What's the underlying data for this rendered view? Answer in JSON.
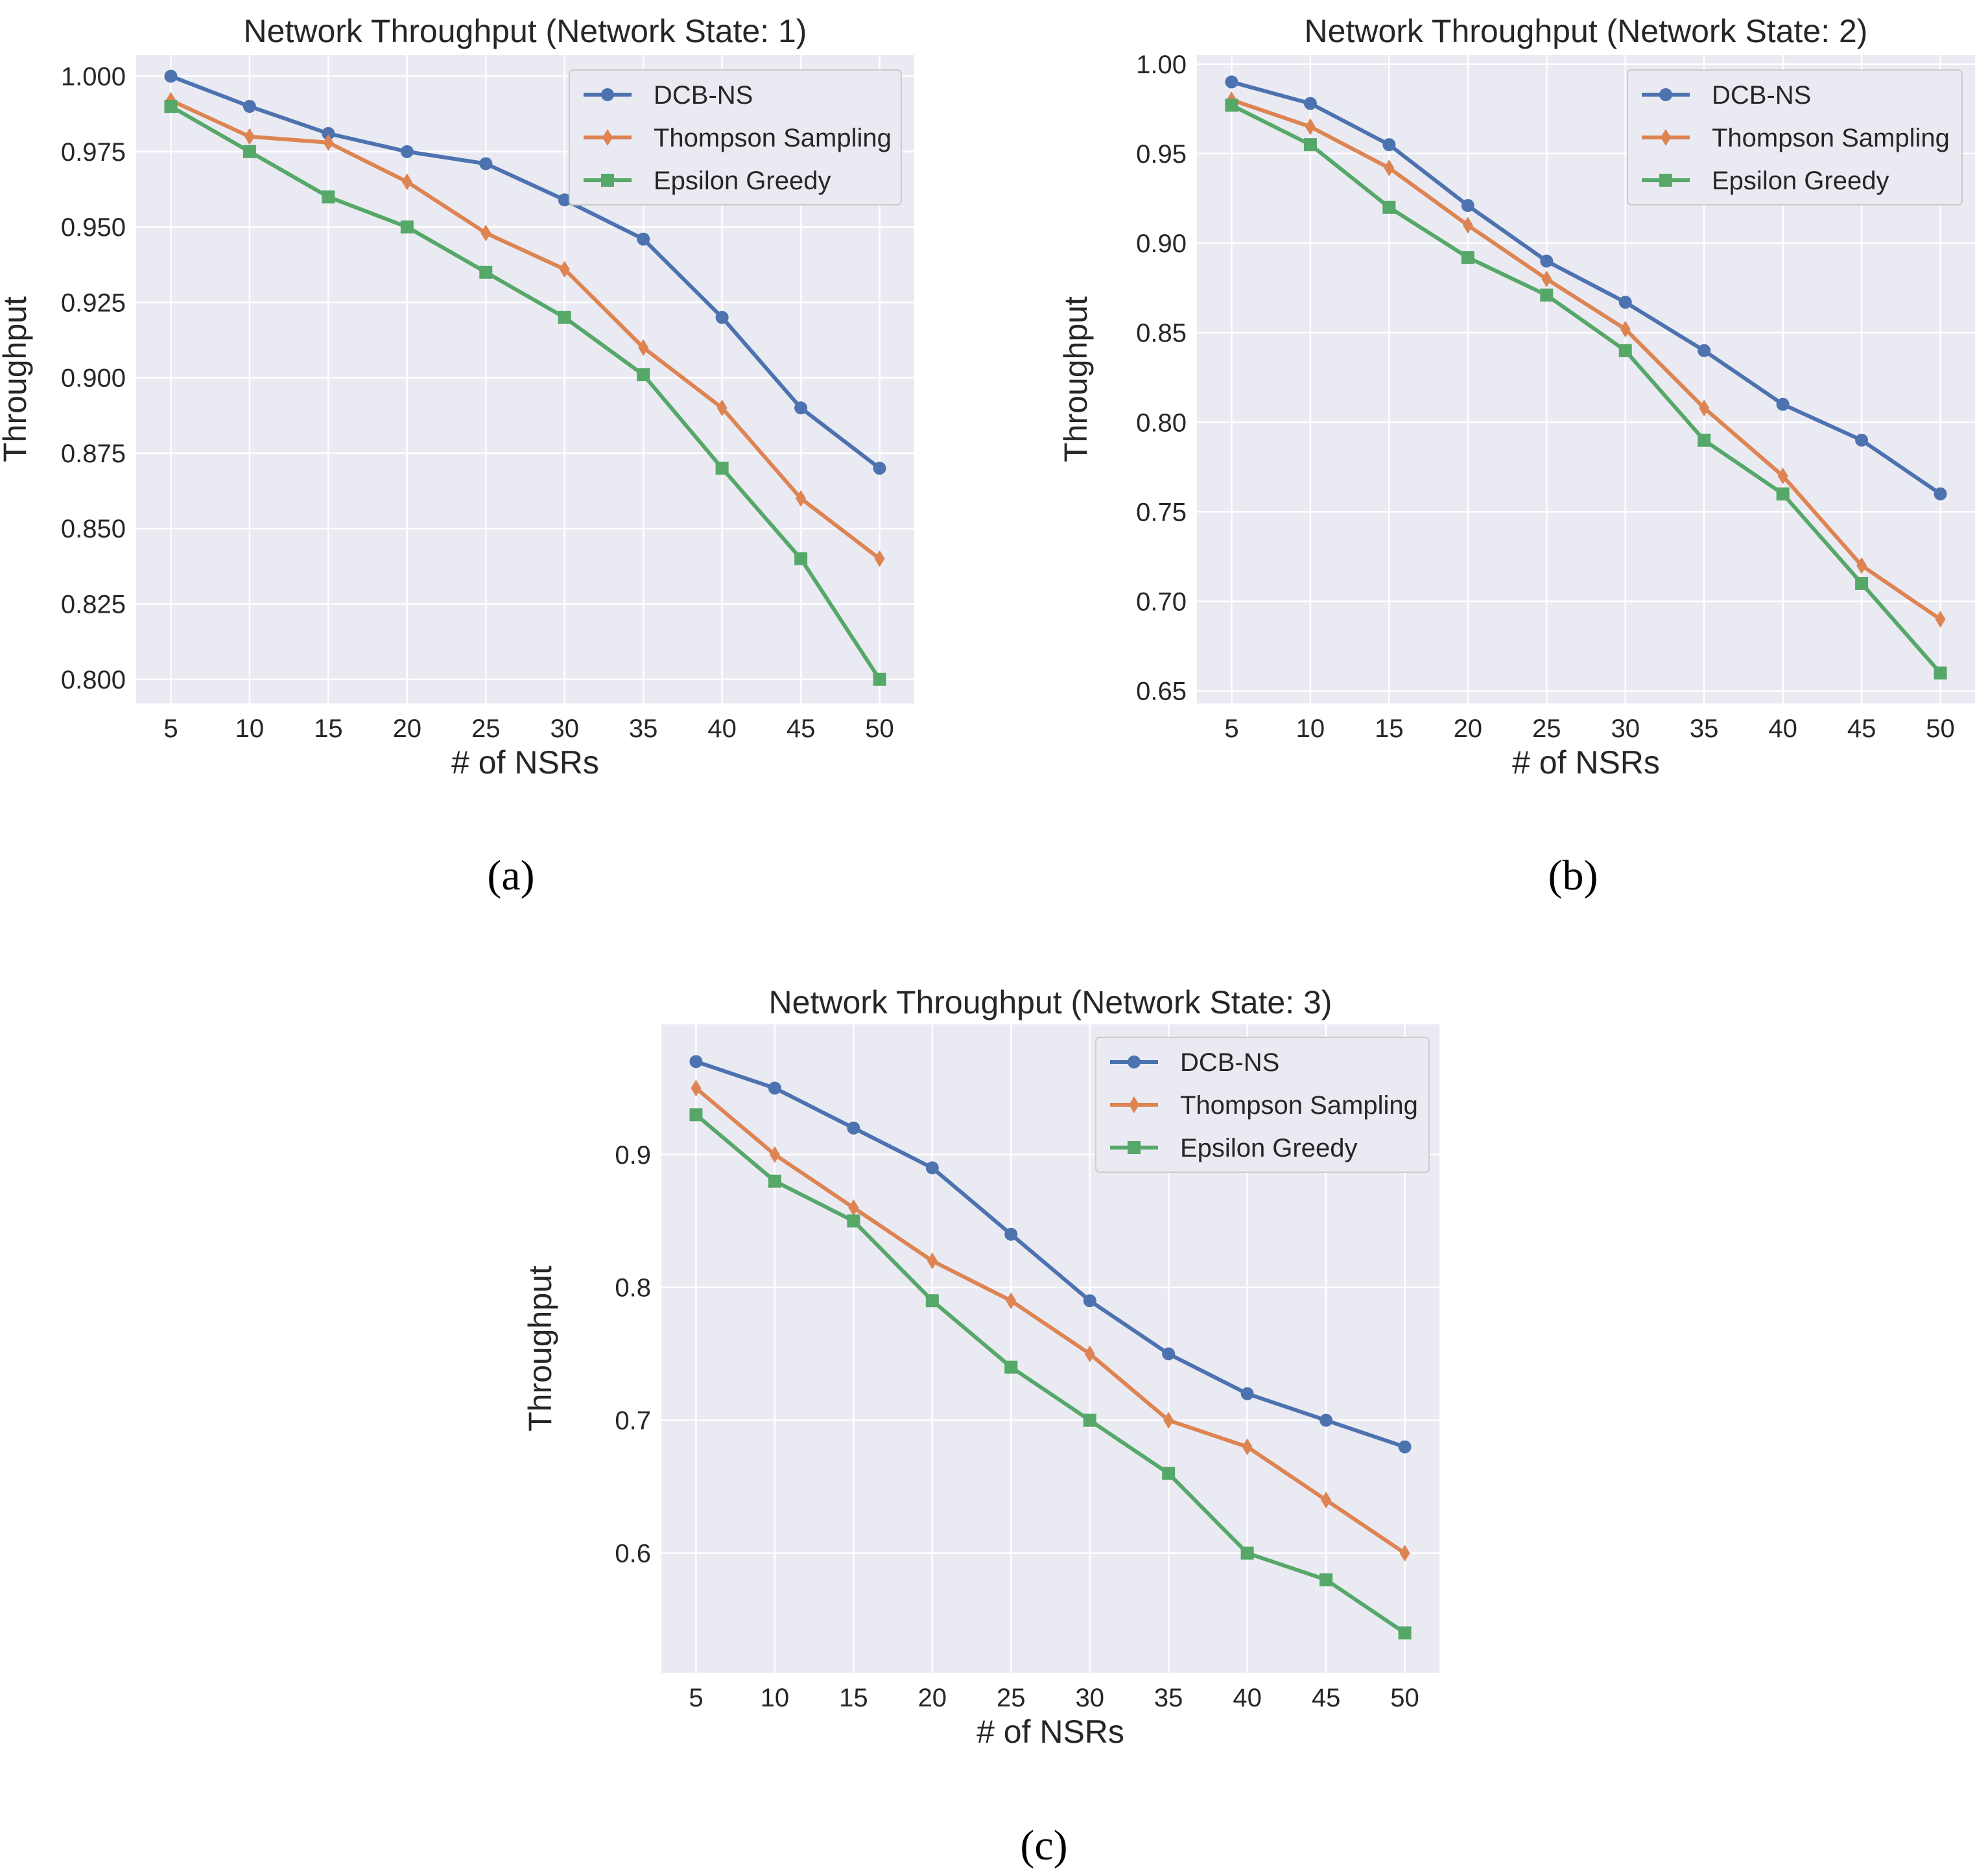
{
  "figure": {
    "captions": [
      "(a)",
      "(b)",
      "(c)"
    ]
  },
  "colors": {
    "plot_background": "#EAEAF2",
    "grid": "#FFFFFF",
    "series": [
      "#4C72B0",
      "#DD8452",
      "#55A868"
    ]
  },
  "chart_data": [
    {
      "type": "line",
      "title": "Network Throughput (Network State: 1)",
      "xlabel": "# of NSRs",
      "ylabel": "Throughput",
      "x": [
        5,
        10,
        15,
        20,
        25,
        30,
        35,
        40,
        45,
        50
      ],
      "xlim": [
        2.8,
        52.2
      ],
      "ylim": [
        0.792,
        1.007
      ],
      "yticks": [
        0.8,
        0.825,
        0.85,
        0.875,
        0.9,
        0.925,
        0.95,
        0.975,
        1.0
      ],
      "ytick_labels": [
        "0.800",
        "0.825",
        "0.850",
        "0.875",
        "0.900",
        "0.925",
        "0.950",
        "0.975",
        "1.000"
      ],
      "legend_position": "top-right",
      "grid": true,
      "series": [
        {
          "name": "DCB-NS",
          "marker": "circle",
          "values": [
            1.0,
            0.99,
            0.981,
            0.975,
            0.971,
            0.959,
            0.946,
            0.92,
            0.89,
            0.87
          ]
        },
        {
          "name": "Thompson Sampling",
          "marker": "diamond",
          "values": [
            0.992,
            0.98,
            0.978,
            0.965,
            0.948,
            0.936,
            0.91,
            0.89,
            0.86,
            0.84
          ]
        },
        {
          "name": "Epsilon Greedy",
          "marker": "square",
          "values": [
            0.99,
            0.975,
            0.96,
            0.95,
            0.935,
            0.92,
            0.901,
            0.87,
            0.84,
            0.8
          ]
        }
      ]
    },
    {
      "type": "line",
      "title": "Network Throughput (Network State: 2)",
      "xlabel": "# of NSRs",
      "ylabel": "Throughput",
      "x": [
        5,
        10,
        15,
        20,
        25,
        30,
        35,
        40,
        45,
        50
      ],
      "xlim": [
        2.8,
        52.2
      ],
      "ylim": [
        0.643,
        1.005
      ],
      "yticks": [
        0.65,
        0.7,
        0.75,
        0.8,
        0.85,
        0.9,
        0.95,
        1.0
      ],
      "ytick_labels": [
        "0.65",
        "0.70",
        "0.75",
        "0.80",
        "0.85",
        "0.90",
        "0.95",
        "1.00"
      ],
      "legend_position": "top-right",
      "grid": true,
      "series": [
        {
          "name": "DCB-NS",
          "marker": "circle",
          "values": [
            0.99,
            0.978,
            0.955,
            0.921,
            0.89,
            0.867,
            0.84,
            0.81,
            0.79,
            0.76
          ]
        },
        {
          "name": "Thompson Sampling",
          "marker": "diamond",
          "values": [
            0.98,
            0.965,
            0.942,
            0.91,
            0.88,
            0.852,
            0.808,
            0.77,
            0.72,
            0.69
          ]
        },
        {
          "name": "Epsilon Greedy",
          "marker": "square",
          "values": [
            0.977,
            0.955,
            0.92,
            0.892,
            0.871,
            0.84,
            0.79,
            0.76,
            0.71,
            0.66
          ]
        }
      ]
    },
    {
      "type": "line",
      "title": "Network Throughput (Network State: 3)",
      "xlabel": "# of NSRs",
      "ylabel": "Throughput",
      "x": [
        5,
        10,
        15,
        20,
        25,
        30,
        35,
        40,
        45,
        50
      ],
      "xlim": [
        2.8,
        52.2
      ],
      "ylim": [
        0.51,
        0.998
      ],
      "yticks": [
        0.6,
        0.7,
        0.8,
        0.9
      ],
      "ytick_labels": [
        "0.6",
        "0.7",
        "0.8",
        "0.9"
      ],
      "legend_position": "top-right",
      "grid": true,
      "series": [
        {
          "name": "DCB-NS",
          "marker": "circle",
          "values": [
            0.97,
            0.95,
            0.92,
            0.89,
            0.84,
            0.79,
            0.75,
            0.72,
            0.7,
            0.68
          ]
        },
        {
          "name": "Thompson Sampling",
          "marker": "diamond",
          "values": [
            0.95,
            0.9,
            0.86,
            0.82,
            0.79,
            0.75,
            0.7,
            0.68,
            0.64,
            0.6
          ]
        },
        {
          "name": "Epsilon Greedy",
          "marker": "square",
          "values": [
            0.93,
            0.88,
            0.85,
            0.79,
            0.74,
            0.7,
            0.66,
            0.6,
            0.58,
            0.54
          ]
        }
      ]
    }
  ]
}
